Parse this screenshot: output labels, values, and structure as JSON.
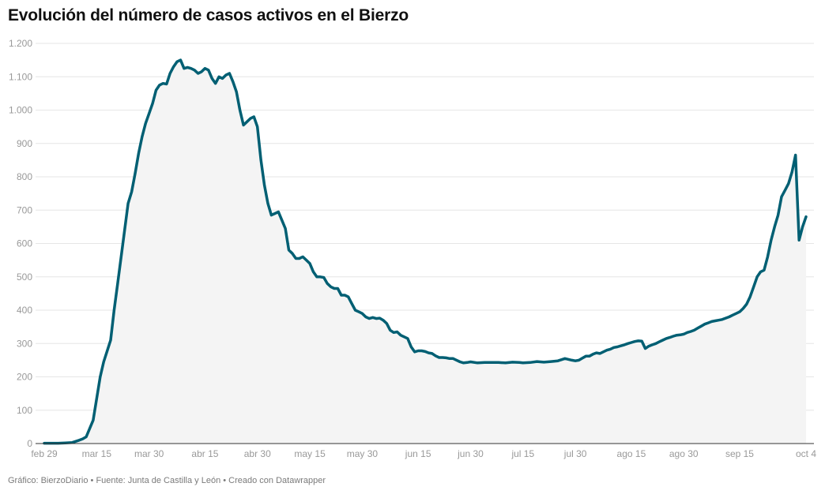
{
  "title": "Evolución del número de casos activos en el Bierzo",
  "footer": "Gráfico: BierzoDiario • Fuente: Junta de Castilla y León • Creado con Datawrapper",
  "colors": {
    "line": "#005f73",
    "area": "#f4f4f4",
    "grid": "#e6e6e6",
    "tick_text": "#999999",
    "axis": "#333333"
  },
  "chart_data": {
    "type": "area",
    "title": "Evolución del número de casos activos en el Bierzo",
    "xlabel": "",
    "ylabel": "",
    "ylim": [
      0,
      1200
    ],
    "y_ticks": [
      0,
      100,
      200,
      300,
      400,
      500,
      600,
      700,
      800,
      900,
      1000,
      1100,
      1200
    ],
    "y_tick_labels": [
      "0",
      "100",
      "200",
      "300",
      "400",
      "500",
      "600",
      "700",
      "800",
      "900",
      "1.000",
      "1.100",
      "1.200"
    ],
    "x_ticks": [
      "feb 29",
      "mar 15",
      "mar 30",
      "abr 15",
      "abr 30",
      "may 15",
      "may 30",
      "jun 15",
      "jun 30",
      "jul 15",
      "jul 30",
      "ago 15",
      "ago 30",
      "sep 15",
      "oct 4"
    ],
    "grid": true,
    "series": [
      {
        "values": [
          [
            "2020-02-29",
            1
          ],
          [
            "2020-03-02",
            1
          ],
          [
            "2020-03-04",
            1
          ],
          [
            "2020-03-06",
            2
          ],
          [
            "2020-03-08",
            3
          ],
          [
            "2020-03-10",
            10
          ],
          [
            "2020-03-11",
            14
          ],
          [
            "2020-03-12",
            20
          ],
          [
            "2020-03-14",
            70
          ],
          [
            "2020-03-16",
            200
          ],
          [
            "2020-03-17",
            245
          ],
          [
            "2020-03-19",
            310
          ],
          [
            "2020-03-20",
            400
          ],
          [
            "2020-03-21",
            480
          ],
          [
            "2020-03-22",
            560
          ],
          [
            "2020-03-23",
            640
          ],
          [
            "2020-03-24",
            720
          ],
          [
            "2020-03-25",
            755
          ],
          [
            "2020-03-26",
            810
          ],
          [
            "2020-03-27",
            870
          ],
          [
            "2020-03-28",
            920
          ],
          [
            "2020-03-29",
            960
          ],
          [
            "2020-03-30",
            990
          ],
          [
            "2020-03-31",
            1020
          ],
          [
            "2020-04-01",
            1060
          ],
          [
            "2020-04-02",
            1075
          ],
          [
            "2020-04-03",
            1080
          ],
          [
            "2020-04-04",
            1078
          ],
          [
            "2020-04-05",
            1110
          ],
          [
            "2020-04-06",
            1130
          ],
          [
            "2020-04-07",
            1145
          ],
          [
            "2020-04-08",
            1150
          ],
          [
            "2020-04-09",
            1125
          ],
          [
            "2020-04-10",
            1128
          ],
          [
            "2020-04-11",
            1125
          ],
          [
            "2020-04-12",
            1120
          ],
          [
            "2020-04-13",
            1110
          ],
          [
            "2020-04-14",
            1115
          ],
          [
            "2020-04-15",
            1125
          ],
          [
            "2020-04-16",
            1120
          ],
          [
            "2020-04-17",
            1095
          ],
          [
            "2020-04-18",
            1080
          ],
          [
            "2020-04-19",
            1100
          ],
          [
            "2020-04-20",
            1095
          ],
          [
            "2020-04-21",
            1105
          ],
          [
            "2020-04-22",
            1110
          ],
          [
            "2020-04-23",
            1085
          ],
          [
            "2020-04-24",
            1055
          ],
          [
            "2020-04-25",
            1000
          ],
          [
            "2020-04-26",
            955
          ],
          [
            "2020-04-27",
            965
          ],
          [
            "2020-04-28",
            975
          ],
          [
            "2020-04-29",
            980
          ],
          [
            "2020-04-30",
            950
          ],
          [
            "2020-05-01",
            850
          ],
          [
            "2020-05-02",
            775
          ],
          [
            "2020-05-03",
            720
          ],
          [
            "2020-05-04",
            685
          ],
          [
            "2020-05-05",
            690
          ],
          [
            "2020-05-06",
            695
          ],
          [
            "2020-05-07",
            670
          ],
          [
            "2020-05-08",
            645
          ],
          [
            "2020-05-09",
            580
          ],
          [
            "2020-05-10",
            570
          ],
          [
            "2020-05-11",
            555
          ],
          [
            "2020-05-12",
            555
          ],
          [
            "2020-05-13",
            560
          ],
          [
            "2020-05-14",
            550
          ],
          [
            "2020-05-15",
            540
          ],
          [
            "2020-05-16",
            515
          ],
          [
            "2020-05-17",
            500
          ],
          [
            "2020-05-18",
            500
          ],
          [
            "2020-05-19",
            498
          ],
          [
            "2020-05-20",
            480
          ],
          [
            "2020-05-21",
            470
          ],
          [
            "2020-05-22",
            465
          ],
          [
            "2020-05-23",
            465
          ],
          [
            "2020-05-24",
            445
          ],
          [
            "2020-05-25",
            445
          ],
          [
            "2020-05-26",
            440
          ],
          [
            "2020-05-27",
            420
          ],
          [
            "2020-05-28",
            400
          ],
          [
            "2020-05-29",
            395
          ],
          [
            "2020-05-30",
            390
          ],
          [
            "2020-05-31",
            380
          ],
          [
            "2020-06-01",
            375
          ],
          [
            "2020-06-02",
            378
          ],
          [
            "2020-06-03",
            375
          ],
          [
            "2020-06-04",
            376
          ],
          [
            "2020-06-05",
            370
          ],
          [
            "2020-06-06",
            360
          ],
          [
            "2020-06-07",
            340
          ],
          [
            "2020-06-08",
            333
          ],
          [
            "2020-06-09",
            335
          ],
          [
            "2020-06-10",
            325
          ],
          [
            "2020-06-11",
            320
          ],
          [
            "2020-06-12",
            315
          ],
          [
            "2020-06-13",
            290
          ],
          [
            "2020-06-14",
            275
          ],
          [
            "2020-06-15",
            278
          ],
          [
            "2020-06-16",
            278
          ],
          [
            "2020-06-17",
            276
          ],
          [
            "2020-06-18",
            272
          ],
          [
            "2020-06-19",
            270
          ],
          [
            "2020-06-20",
            263
          ],
          [
            "2020-06-21",
            258
          ],
          [
            "2020-06-22",
            258
          ],
          [
            "2020-06-23",
            257
          ],
          [
            "2020-06-24",
            255
          ],
          [
            "2020-06-25",
            255
          ],
          [
            "2020-06-26",
            250
          ],
          [
            "2020-06-27",
            245
          ],
          [
            "2020-06-28",
            242
          ],
          [
            "2020-06-29",
            243
          ],
          [
            "2020-06-30",
            245
          ],
          [
            "2020-07-02",
            242
          ],
          [
            "2020-07-04",
            243
          ],
          [
            "2020-07-06",
            243
          ],
          [
            "2020-07-08",
            243
          ],
          [
            "2020-07-10",
            242
          ],
          [
            "2020-07-12",
            244
          ],
          [
            "2020-07-14",
            243
          ],
          [
            "2020-07-15",
            242
          ],
          [
            "2020-07-17",
            243
          ],
          [
            "2020-07-19",
            246
          ],
          [
            "2020-07-21",
            244
          ],
          [
            "2020-07-23",
            246
          ],
          [
            "2020-07-25",
            248
          ],
          [
            "2020-07-27",
            255
          ],
          [
            "2020-07-29",
            250
          ],
          [
            "2020-07-30",
            248
          ],
          [
            "2020-07-31",
            250
          ],
          [
            "2020-08-01",
            256
          ],
          [
            "2020-08-02",
            262
          ],
          [
            "2020-08-03",
            262
          ],
          [
            "2020-08-04",
            268
          ],
          [
            "2020-08-05",
            272
          ],
          [
            "2020-08-06",
            270
          ],
          [
            "2020-08-07",
            275
          ],
          [
            "2020-08-08",
            280
          ],
          [
            "2020-08-09",
            283
          ],
          [
            "2020-08-10",
            288
          ],
          [
            "2020-08-11",
            290
          ],
          [
            "2020-08-12",
            293
          ],
          [
            "2020-08-13",
            296
          ],
          [
            "2020-08-14",
            300
          ],
          [
            "2020-08-15",
            303
          ],
          [
            "2020-08-16",
            306
          ],
          [
            "2020-08-17",
            308
          ],
          [
            "2020-08-18",
            307
          ],
          [
            "2020-08-19",
            285
          ],
          [
            "2020-08-20",
            292
          ],
          [
            "2020-08-21",
            296
          ],
          [
            "2020-08-22",
            300
          ],
          [
            "2020-08-23",
            305
          ],
          [
            "2020-08-24",
            310
          ],
          [
            "2020-08-25",
            315
          ],
          [
            "2020-08-26",
            318
          ],
          [
            "2020-08-27",
            322
          ],
          [
            "2020-08-28",
            325
          ],
          [
            "2020-08-29",
            326
          ],
          [
            "2020-08-30",
            328
          ],
          [
            "2020-08-31",
            333
          ],
          [
            "2020-09-01",
            336
          ],
          [
            "2020-09-02",
            340
          ],
          [
            "2020-09-03",
            346
          ],
          [
            "2020-09-04",
            352
          ],
          [
            "2020-09-05",
            358
          ],
          [
            "2020-09-06",
            362
          ],
          [
            "2020-09-07",
            366
          ],
          [
            "2020-09-08",
            368
          ],
          [
            "2020-09-09",
            370
          ],
          [
            "2020-09-10",
            372
          ],
          [
            "2020-09-11",
            376
          ],
          [
            "2020-09-12",
            380
          ],
          [
            "2020-09-13",
            385
          ],
          [
            "2020-09-14",
            390
          ],
          [
            "2020-09-15",
            395
          ],
          [
            "2020-09-16",
            405
          ],
          [
            "2020-09-17",
            418
          ],
          [
            "2020-09-18",
            440
          ],
          [
            "2020-09-19",
            470
          ],
          [
            "2020-09-20",
            500
          ],
          [
            "2020-09-21",
            515
          ],
          [
            "2020-09-22",
            520
          ],
          [
            "2020-09-23",
            560
          ],
          [
            "2020-09-24",
            610
          ],
          [
            "2020-09-25",
            650
          ],
          [
            "2020-09-26",
            685
          ],
          [
            "2020-09-27",
            740
          ],
          [
            "2020-09-28",
            760
          ],
          [
            "2020-09-29",
            780
          ],
          [
            "2020-09-30",
            815
          ],
          [
            "2020-10-01",
            865
          ],
          [
            "2020-10-02",
            610
          ],
          [
            "2020-10-03",
            650
          ],
          [
            "2020-10-04",
            680
          ]
        ]
      }
    ]
  }
}
